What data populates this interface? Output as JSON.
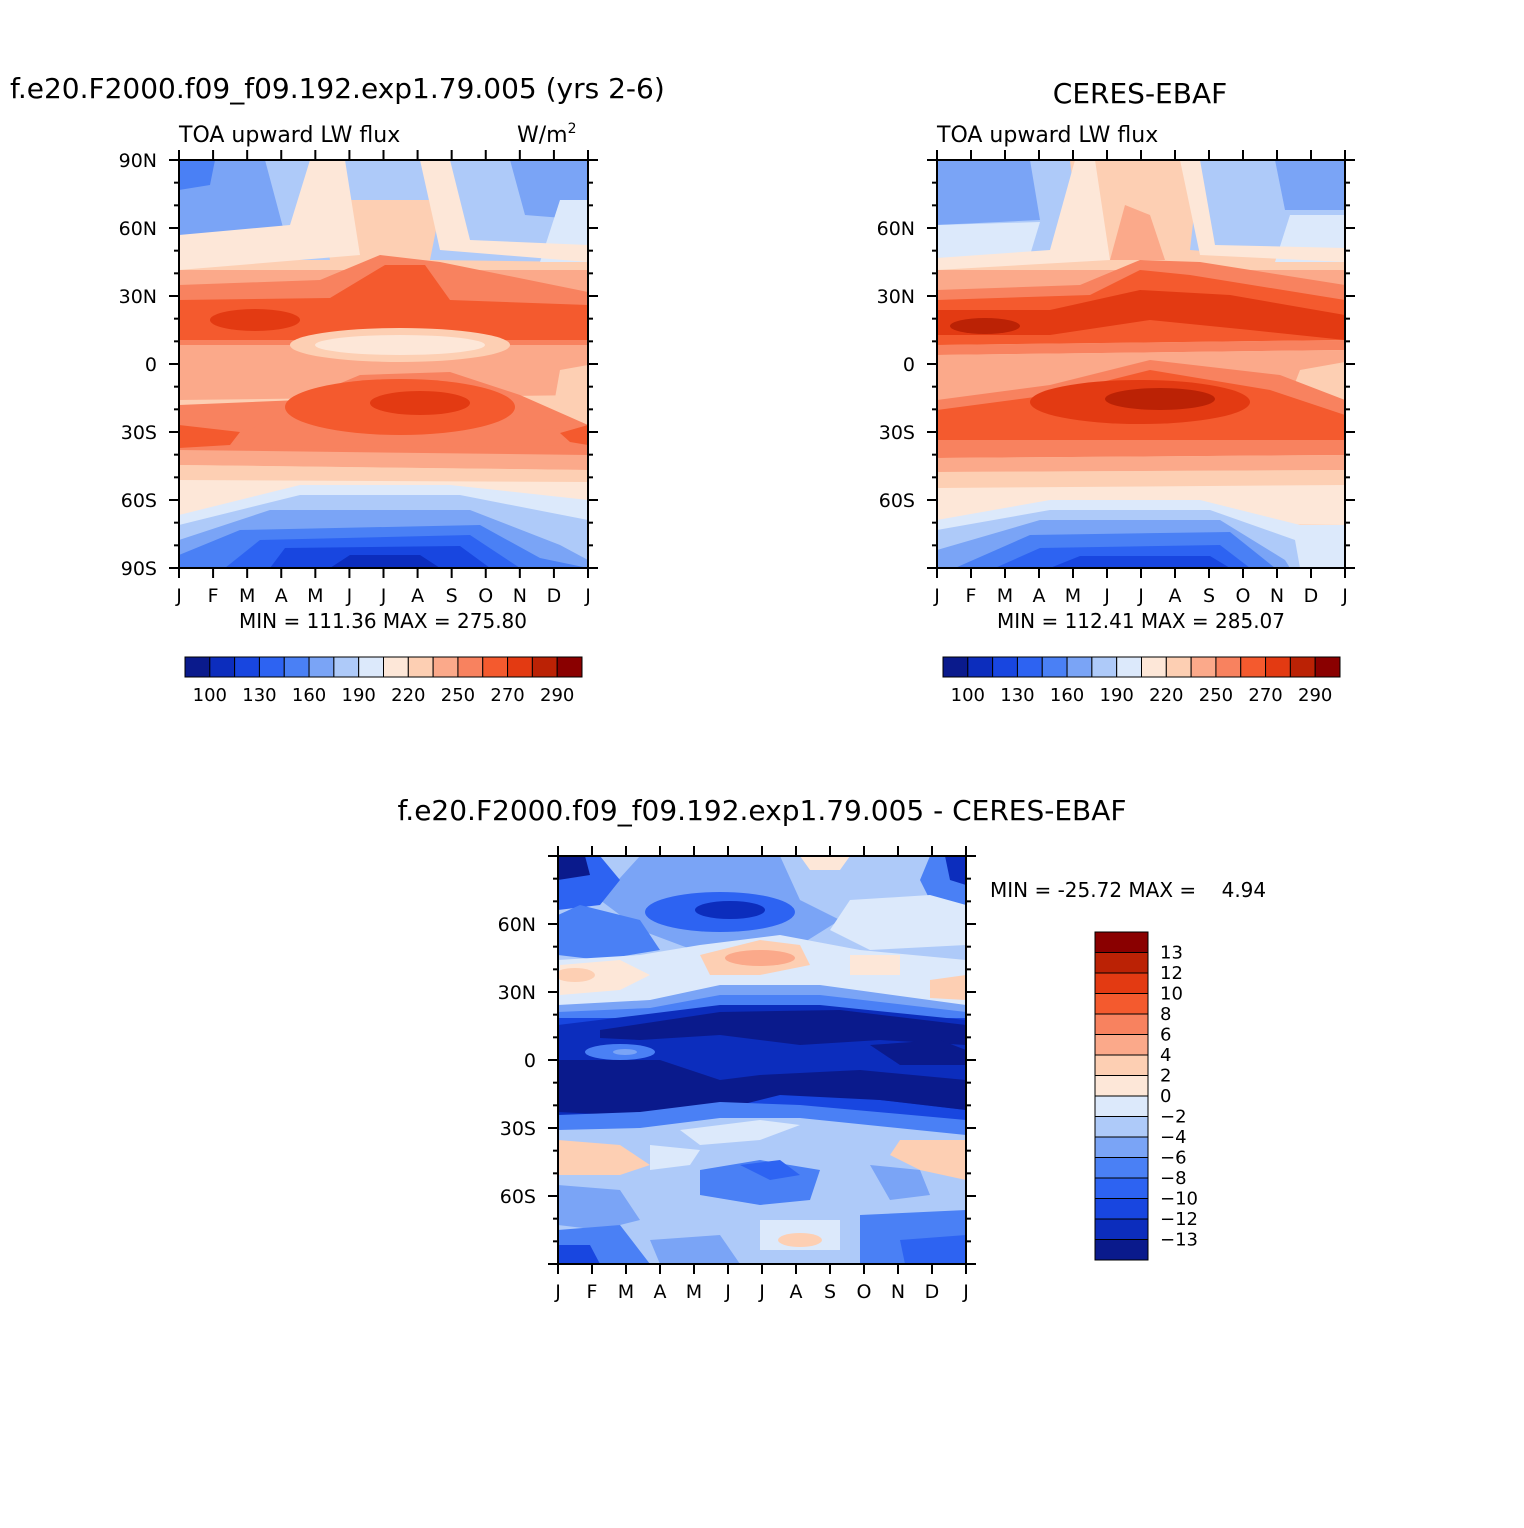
{
  "chart_data": [
    {
      "type": "heatmap",
      "title": "f.e20.F2000.f09_f09.192.exp1.79.005 (yrs 2-6)",
      "variable": "TOA upward LW flux",
      "units": "W/m",
      "units_sup": "2",
      "x_ticks": [
        "J",
        "F",
        "M",
        "A",
        "M",
        "J",
        "J",
        "A",
        "S",
        "O",
        "N",
        "D",
        "J"
      ],
      "y_ticks": [
        "90N",
        "60N",
        "30N",
        "0",
        "30S",
        "60S",
        "90S"
      ],
      "y_values": [
        90,
        60,
        30,
        0,
        -30,
        -60,
        -90
      ],
      "stats": "MIN = 111.36 MAX = 275.80",
      "min": 111.36,
      "max": 275.8,
      "colorbar_labels": [
        "100",
        "130",
        "160",
        "190",
        "220",
        "250",
        "270",
        "290"
      ]
    },
    {
      "type": "heatmap",
      "title": "CERES-EBAF",
      "variable": "TOA upward LW flux",
      "x_ticks": [
        "J",
        "F",
        "M",
        "A",
        "M",
        "J",
        "J",
        "A",
        "S",
        "O",
        "N",
        "D",
        "J"
      ],
      "y_ticks": [
        "60N",
        "30N",
        "0",
        "30S",
        "60S"
      ],
      "y_values": [
        60,
        30,
        0,
        -30,
        -60
      ],
      "stats": "MIN = 112.41 MAX = 285.07",
      "min": 112.41,
      "max": 285.07,
      "colorbar_labels": [
        "100",
        "130",
        "160",
        "190",
        "220",
        "250",
        "270",
        "290"
      ]
    },
    {
      "type": "heatmap",
      "title": "f.e20.F2000.f09_f09.192.exp1.79.005 - CERES-EBAF",
      "x_ticks": [
        "J",
        "F",
        "M",
        "A",
        "M",
        "J",
        "J",
        "A",
        "S",
        "O",
        "N",
        "D",
        "J"
      ],
      "y_ticks": [
        "60N",
        "30N",
        "0",
        "30S",
        "60S"
      ],
      "y_values": [
        60,
        30,
        0,
        -30,
        -60
      ],
      "stats": "MIN = -25.72 MAX =    4.94",
      "min": -25.72,
      "max": 4.94,
      "colorbar_labels": [
        "13",
        "12",
        "10",
        "8",
        "6",
        "4",
        "2",
        "0",
        "-2",
        "-4",
        "-6",
        "-8",
        "-10",
        "-12",
        "-13"
      ]
    }
  ],
  "palettes": {
    "flux": [
      "#0a1a8c",
      "#0c2dbd",
      "#1846e0",
      "#2d63f2",
      "#4a80f5",
      "#7aa4f6",
      "#aecaf9",
      "#dce9fb",
      "#fde7d8",
      "#fdcfb3",
      "#fba98a",
      "#f8825f",
      "#f45a2e",
      "#e33a12",
      "#bb2205",
      "#8a0000"
    ],
    "diff": [
      "#8a0000",
      "#bb2205",
      "#e33a12",
      "#f45a2e",
      "#f8825f",
      "#fba98a",
      "#fdcfb3",
      "#fde7d8",
      "#dce9fb",
      "#aecaf9",
      "#7aa4f6",
      "#4a80f5",
      "#2d63f2",
      "#1846e0",
      "#0c2dbd",
      "#0a1a8c"
    ]
  }
}
